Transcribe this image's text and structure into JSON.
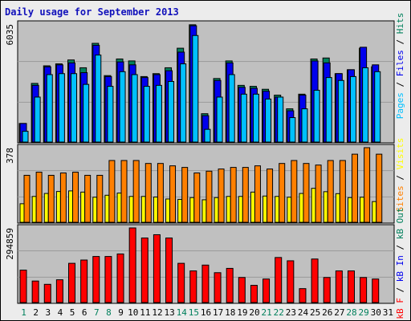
{
  "title": "Daily usage for September 2013",
  "chart_data": [
    {
      "type": "bar",
      "name": "pages-files-hits",
      "ymax_label": "6035",
      "ymax": 6035,
      "days": [
        "1",
        "2",
        "3",
        "4",
        "5",
        "6",
        "7",
        "8",
        "9",
        "10",
        "11",
        "12",
        "13",
        "14",
        "15",
        "16",
        "17",
        "18",
        "19",
        "20",
        "21",
        "22",
        "23",
        "24",
        "25",
        "26",
        "27",
        "28",
        "29",
        "30",
        "31"
      ],
      "weekend_days": [
        "1",
        "7",
        "8",
        "14",
        "15",
        "21",
        "22",
        "28",
        "29"
      ],
      "series": [
        {
          "name": "Hits",
          "color": "#00805c",
          "values": [
            950,
            3000,
            3900,
            4000,
            4200,
            3800,
            5050,
            3400,
            4250,
            4150,
            3350,
            3500,
            3800,
            4800,
            6000,
            1450,
            3250,
            4150,
            2900,
            2850,
            2700,
            2400,
            1700,
            2450,
            4250,
            4300,
            3500,
            3700,
            4800,
            3850
          ]
        },
        {
          "name": "Files",
          "color": "#0000ee",
          "values": [
            950,
            2900,
            3850,
            3950,
            4050,
            3550,
            4950,
            3350,
            4100,
            3950,
            3300,
            3450,
            3650,
            4600,
            5950,
            1350,
            3150,
            4050,
            2800,
            2750,
            2600,
            2300,
            1600,
            2400,
            4150,
            4050,
            3500,
            3700,
            4850,
            3950
          ]
        },
        {
          "name": "Pages",
          "color": "#00c0ff",
          "values": [
            550,
            2300,
            3450,
            3500,
            3500,
            2950,
            4450,
            2850,
            3600,
            3450,
            2850,
            2900,
            3100,
            4000,
            5450,
            650,
            2300,
            3450,
            2450,
            2450,
            2200,
            2300,
            1250,
            1700,
            2650,
            3300,
            3150,
            3350,
            3800,
            3600
          ]
        }
      ]
    },
    {
      "type": "bar",
      "name": "sites-visits",
      "ymax_label": "378",
      "ymax": 378,
      "series": [
        {
          "name": "Sites",
          "color": "#ff8000",
          "values": [
            238,
            254,
            238,
            250,
            254,
            238,
            238,
            313,
            313,
            313,
            298,
            298,
            286,
            278,
            250,
            259,
            270,
            278,
            278,
            286,
            270,
            298,
            313,
            298,
            290,
            313,
            313,
            345,
            378,
            345
          ]
        },
        {
          "name": "Visits",
          "color": "#ffff00",
          "values": [
            94,
            131,
            146,
            156,
            159,
            153,
            127,
            137,
            148,
            131,
            131,
            128,
            118,
            116,
            125,
            114,
            125,
            131,
            131,
            153,
            133,
            131,
            127,
            146,
            172,
            155,
            145,
            125,
            127,
            105
          ]
        }
      ]
    },
    {
      "type": "bar",
      "name": "kb-in-out-f",
      "ymax_label": "294859",
      "ymax": 294859,
      "series": [
        {
          "name": "KB F",
          "color": "#ff0000",
          "values": [
            128000,
            85000,
            72000,
            90000,
            155000,
            168000,
            182000,
            182000,
            192000,
            294859,
            255000,
            268000,
            255000,
            155000,
            125000,
            148000,
            118000,
            135000,
            99000,
            68000,
            93000,
            178000,
            165000,
            55000,
            172000,
            99000,
            125000,
            125000,
            99000,
            93000,
            0
          ]
        }
      ]
    }
  ],
  "right_labels": {
    "top": [
      {
        "text": "Pages",
        "color": "#00c0ff"
      },
      {
        "text": " / ",
        "color": "#000000"
      },
      {
        "text": "Files",
        "color": "#0000ee"
      },
      {
        "text": " / ",
        "color": "#000000"
      },
      {
        "text": "Hits",
        "color": "#00805c"
      }
    ],
    "middle": [
      {
        "text": "Sites",
        "color": "#ff8000"
      },
      {
        "text": " / ",
        "color": "#000000"
      },
      {
        "text": "Visits",
        "color": "#ffff00"
      }
    ],
    "bottom": [
      {
        "text": "kB F",
        "color": "#ff0000"
      },
      {
        "text": " / ",
        "color": "#000000"
      },
      {
        "text": "kB In",
        "color": "#0000ee"
      },
      {
        "text": " / ",
        "color": "#000000"
      },
      {
        "text": "kB Out",
        "color": "#00805c"
      }
    ]
  }
}
